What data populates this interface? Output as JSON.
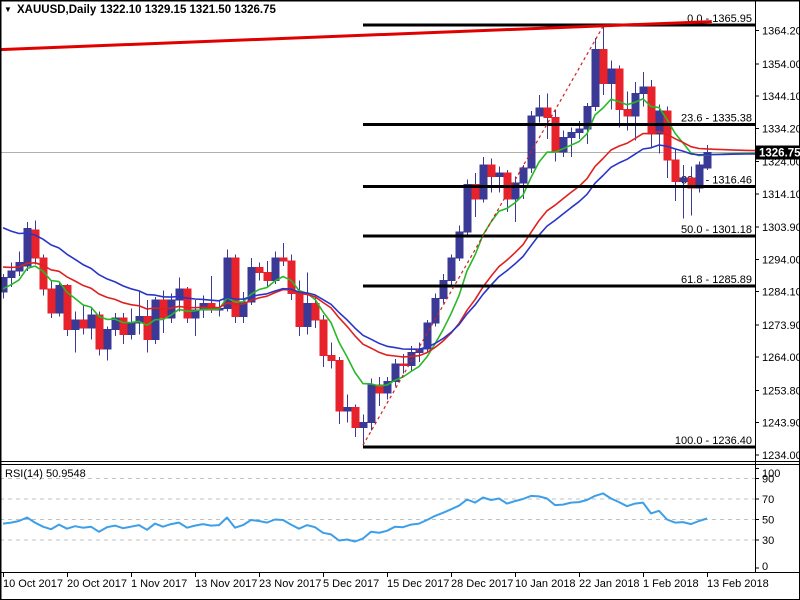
{
  "window": {
    "collapse_icon": "▼",
    "title": {
      "symbol": "XAUUSD,Daily",
      "values": "1322.10 1329.15 1321.50 1326.75"
    }
  },
  "price_axis": {
    "ticks": [
      "1364.20",
      "1354.00",
      "1344.10",
      "1334.20",
      "1324.00",
      "1314.10",
      "1303.90",
      "1294.00",
      "1284.10",
      "1273.90",
      "1264.00",
      "1253.80",
      "1243.90",
      "1234.00"
    ],
    "current_price_tag": "1326.75"
  },
  "date_axis": {
    "labels": [
      {
        "text": "10 Oct 2017",
        "index": 0
      },
      {
        "text": "20 Oct 2017",
        "index": 8
      },
      {
        "text": "1 Nov 2017",
        "index": 16
      },
      {
        "text": "13 Nov 2017",
        "index": 24
      },
      {
        "text": "23 Nov 2017",
        "index": 32
      },
      {
        "text": "5 Dec 2017",
        "index": 40
      },
      {
        "text": "15 Dec 2017",
        "index": 48
      },
      {
        "text": "28 Dec 2017",
        "index": 56
      },
      {
        "text": "10 Jan 2018",
        "index": 64
      },
      {
        "text": "22 Jan 2018",
        "index": 72
      },
      {
        "text": "1 Feb 2018",
        "index": 80
      },
      {
        "text": "13 Feb 2018",
        "index": 88
      }
    ]
  },
  "fibonacci": {
    "levels": [
      {
        "pct": "0.0",
        "price": 1365.95,
        "label": "0.0 - 1365.95"
      },
      {
        "pct": "23.6",
        "price": 1335.38,
        "label": "23.6 - 1335.38"
      },
      {
        "pct": "38.2",
        "price": 1316.46,
        "label": "38.2 - 1316.46"
      },
      {
        "pct": "50.0",
        "price": 1301.18,
        "label": "50.0 - 1301.18"
      },
      {
        "pct": "61.8",
        "price": 1285.89,
        "label": "61.8 - 1285.89"
      },
      {
        "pct": "100.0",
        "price": 1236.4,
        "label": "100.0 - 1236.40"
      }
    ]
  },
  "rsi_panel": {
    "label": "RSI(14) 50.9548",
    "scale_labels": [
      "100",
      "90",
      "70",
      "50",
      "30",
      "0"
    ],
    "gridlines": [
      90,
      70,
      50,
      30
    ]
  },
  "colors": {
    "background": "#FFFFFF",
    "bull": "#3A3A96",
    "bear": "#E8222A",
    "wick": "#3A3A96",
    "ma_fast": "#28B828",
    "ma_medium": "#E02020",
    "ma_slow": "#2A35C8",
    "rsi_line": "#3D9FE8",
    "fib": "#000000",
    "trendline": "#E00000",
    "trendline_dashed": "#D02020",
    "current_price_line": "#B0B0B0",
    "grid_dash": "#C0C0C0",
    "tag_bg": "#000000",
    "tag_text": "#FFFFFF",
    "frame": "#000000"
  },
  "chart_data": {
    "type": "candlestick",
    "symbol": "XAUUSD",
    "timeframe": "Daily",
    "title": "XAUUSD,Daily 1322.10 1329.15 1321.50 1326.75",
    "ohlc_display": {
      "open": 1322.1,
      "high": 1329.15,
      "low": 1321.5,
      "close": 1326.75
    },
    "current_price": 1326.75,
    "ylim": [
      1234.0,
      1364.2
    ],
    "columns": [
      "date",
      "open",
      "high",
      "low",
      "close"
    ],
    "candles": [
      [
        "10 Oct 2017",
        1284.0,
        1289.5,
        1282.0,
        1288.5
      ],
      [
        "11 Oct 2017",
        1288.5,
        1293.0,
        1285.5,
        1290.5
      ],
      [
        "12 Oct 2017",
        1290.5,
        1296.5,
        1289.0,
        1293.0
      ],
      [
        "13 Oct 2017",
        1292.0,
        1305.5,
        1290.5,
        1303.5
      ],
      [
        "16 Oct 2017",
        1303.0,
        1306.0,
        1292.5,
        1294.5
      ],
      [
        "17 Oct 2017",
        1294.5,
        1295.5,
        1283.0,
        1285.0
      ],
      [
        "18 Oct 2017",
        1285.0,
        1287.5,
        1276.0,
        1277.5
      ],
      [
        "19 Oct 2017",
        1277.5,
        1287.0,
        1276.5,
        1286.0
      ],
      [
        "20 Oct 2017",
        1286.0,
        1286.5,
        1270.5,
        1272.5
      ],
      [
        "23 Oct 2017",
        1272.5,
        1278.0,
        1265.5,
        1275.5
      ],
      [
        "24 Oct 2017",
        1275.5,
        1280.0,
        1271.0,
        1273.0
      ],
      [
        "25 Oct 2017",
        1273.0,
        1279.0,
        1269.5,
        1277.0
      ],
      [
        "26 Oct 2017",
        1277.0,
        1278.0,
        1264.5,
        1266.5
      ],
      [
        "27 Oct 2017",
        1266.5,
        1273.5,
        1263.0,
        1272.5
      ],
      [
        "30 Oct 2017",
        1272.5,
        1277.5,
        1270.5,
        1276.0
      ],
      [
        "31 Oct 2017",
        1276.0,
        1277.5,
        1268.0,
        1271.0
      ],
      [
        "1 Nov 2017",
        1271.0,
        1279.0,
        1269.5,
        1274.5
      ],
      [
        "2 Nov 2017",
        1274.5,
        1284.5,
        1271.0,
        1276.5
      ],
      [
        "3 Nov 2017",
        1276.5,
        1281.5,
        1265.5,
        1269.5
      ],
      [
        "6 Nov 2017",
        1269.5,
        1282.5,
        1268.0,
        1281.5
      ],
      [
        "7 Nov 2017",
        1281.5,
        1284.5,
        1271.5,
        1276.0
      ],
      [
        "8 Nov 2017",
        1276.0,
        1283.5,
        1274.5,
        1281.5
      ],
      [
        "9 Nov 2017",
        1281.5,
        1288.5,
        1278.0,
        1285.0
      ],
      [
        "10 Nov 2017",
        1285.0,
        1285.5,
        1274.5,
        1276.0
      ],
      [
        "13 Nov 2017",
        1276.0,
        1281.5,
        1270.5,
        1278.5
      ],
      [
        "14 Nov 2017",
        1278.5,
        1283.0,
        1276.0,
        1280.5
      ],
      [
        "15 Nov 2017",
        1280.5,
        1289.0,
        1277.5,
        1278.5
      ],
      [
        "16 Nov 2017",
        1278.5,
        1281.5,
        1276.5,
        1279.0
      ],
      [
        "17 Nov 2017",
        1279.0,
        1297.0,
        1278.0,
        1294.5
      ],
      [
        "20 Nov 2017",
        1294.5,
        1295.5,
        1274.5,
        1276.5
      ],
      [
        "21 Nov 2017",
        1276.5,
        1284.0,
        1274.5,
        1281.0
      ],
      [
        "22 Nov 2017",
        1281.0,
        1294.5,
        1280.0,
        1291.5
      ],
      [
        "23 Nov 2017",
        1291.5,
        1293.0,
        1287.5,
        1290.0
      ],
      [
        "24 Nov 2017",
        1290.0,
        1293.5,
        1285.5,
        1287.5
      ],
      [
        "27 Nov 2017",
        1287.5,
        1296.5,
        1286.5,
        1294.5
      ],
      [
        "28 Nov 2017",
        1294.5,
        1299.0,
        1292.0,
        1293.5
      ],
      [
        "29 Nov 2017",
        1293.5,
        1295.5,
        1281.5,
        1283.5
      ],
      [
        "30 Nov 2017",
        1283.5,
        1287.5,
        1270.5,
        1273.5
      ],
      [
        "1 Dec 2017",
        1273.5,
        1290.0,
        1271.0,
        1280.5
      ],
      [
        "4 Dec 2017",
        1280.5,
        1282.5,
        1273.0,
        1275.5
      ],
      [
        "5 Dec 2017",
        1275.5,
        1277.0,
        1261.0,
        1264.5
      ],
      [
        "6 Dec 2017",
        1264.5,
        1268.5,
        1260.5,
        1263.0
      ],
      [
        "7 Dec 2017",
        1263.0,
        1264.0,
        1243.5,
        1247.5
      ],
      [
        "8 Dec 2017",
        1247.5,
        1252.5,
        1244.0,
        1248.5
      ],
      [
        "11 Dec 2017",
        1248.5,
        1249.5,
        1239.5,
        1242.5
      ],
      [
        "12 Dec 2017",
        1242.5,
        1246.5,
        1236.4,
        1244.0
      ],
      [
        "13 Dec 2017",
        1244.0,
        1257.5,
        1241.5,
        1255.5
      ],
      [
        "14 Dec 2017",
        1255.5,
        1258.0,
        1249.0,
        1253.0
      ],
      [
        "15 Dec 2017",
        1253.0,
        1258.0,
        1251.0,
        1256.5
      ],
      [
        "18 Dec 2017",
        1256.5,
        1263.5,
        1255.0,
        1262.0
      ],
      [
        "19 Dec 2017",
        1262.0,
        1265.0,
        1259.0,
        1261.5
      ],
      [
        "20 Dec 2017",
        1261.5,
        1267.5,
        1260.0,
        1265.5
      ],
      [
        "21 Dec 2017",
        1265.5,
        1268.5,
        1262.5,
        1266.5
      ],
      [
        "22 Dec 2017",
        1266.5,
        1275.5,
        1265.5,
        1274.5
      ],
      [
        "26 Dec 2017",
        1274.5,
        1283.5,
        1273.5,
        1282.0
      ],
      [
        "27 Dec 2017",
        1282.0,
        1289.5,
        1280.5,
        1287.5
      ],
      [
        "28 Dec 2017",
        1287.5,
        1295.5,
        1286.0,
        1294.5
      ],
      [
        "29 Dec 2017",
        1294.5,
        1304.5,
        1293.5,
        1302.5
      ],
      [
        "2 Jan 2018",
        1302.5,
        1318.5,
        1301.5,
        1317.0
      ],
      [
        "3 Jan 2018",
        1317.0,
        1320.5,
        1307.0,
        1312.5
      ],
      [
        "4 Jan 2018",
        1312.5,
        1325.5,
        1311.5,
        1323.0
      ],
      [
        "5 Jan 2018",
        1323.0,
        1325.0,
        1314.5,
        1319.5
      ],
      [
        "8 Jan 2018",
        1319.5,
        1322.5,
        1314.5,
        1320.5
      ],
      [
        "9 Jan 2018",
        1320.5,
        1321.5,
        1308.5,
        1312.5
      ],
      [
        "10 Jan 2018",
        1312.5,
        1319.5,
        1305.5,
        1317.5
      ],
      [
        "11 Jan 2018",
        1317.5,
        1323.0,
        1312.5,
        1322.0
      ],
      [
        "12 Jan 2018",
        1322.0,
        1339.5,
        1320.5,
        1338.0
      ],
      [
        "15 Jan 2018",
        1338.0,
        1344.5,
        1336.0,
        1340.5
      ],
      [
        "16 Jan 2018",
        1340.5,
        1345.0,
        1331.0,
        1337.5
      ],
      [
        "17 Jan 2018",
        1337.5,
        1340.0,
        1324.0,
        1327.0
      ],
      [
        "18 Jan 2018",
        1327.0,
        1333.5,
        1325.5,
        1331.5
      ],
      [
        "19 Jan 2018",
        1331.5,
        1334.5,
        1325.5,
        1333.0
      ],
      [
        "22 Jan 2018",
        1333.0,
        1336.5,
        1331.0,
        1334.0
      ],
      [
        "23 Jan 2018",
        1334.0,
        1342.0,
        1329.5,
        1341.0
      ],
      [
        "24 Jan 2018",
        1341.0,
        1362.0,
        1339.5,
        1358.5
      ],
      [
        "25 Jan 2018",
        1358.5,
        1365.95,
        1344.5,
        1348.0
      ],
      [
        "26 Jan 2018",
        1348.0,
        1355.0,
        1340.0,
        1352.5
      ],
      [
        "29 Jan 2018",
        1352.5,
        1353.5,
        1334.5,
        1340.0
      ],
      [
        "30 Jan 2018",
        1340.0,
        1345.5,
        1333.5,
        1338.0
      ],
      [
        "31 Jan 2018",
        1338.0,
        1348.5,
        1330.5,
        1345.0
      ],
      [
        "1 Feb 2018",
        1345.0,
        1351.5,
        1341.0,
        1347.0
      ],
      [
        "2 Feb 2018",
        1347.0,
        1349.0,
        1328.0,
        1332.5
      ],
      [
        "5 Feb 2018",
        1332.5,
        1341.5,
        1326.5,
        1339.5
      ],
      [
        "6 Feb 2018",
        1339.5,
        1341.0,
        1319.0,
        1324.5
      ],
      [
        "7 Feb 2018",
        1324.5,
        1328.0,
        1312.0,
        1318.0
      ],
      [
        "8 Feb 2018",
        1318.0,
        1323.0,
        1306.5,
        1319.0
      ],
      [
        "9 Feb 2018",
        1319.0,
        1322.5,
        1307.5,
        1316.0
      ],
      [
        "12 Feb 2018",
        1316.0,
        1324.0,
        1314.5,
        1323.0
      ],
      [
        "13 Feb 2018",
        1322.1,
        1329.15,
        1321.5,
        1326.75
      ]
    ],
    "moving_averages": [
      {
        "name": "fast",
        "type": "ema",
        "period": 8,
        "seed": 1284,
        "color": "#28B828"
      },
      {
        "name": "medium",
        "type": "ema",
        "period": 20,
        "seed": 1292,
        "color": "#E02020"
      },
      {
        "name": "slow",
        "type": "ema",
        "period": 25,
        "seed": 1305,
        "color": "#2A35C8"
      }
    ],
    "trendlines": [
      {
        "name": "resistance-trendline",
        "style": "solid",
        "width": 3,
        "color": "#E00000",
        "from": {
          "index": -0.4,
          "price": 1358.4
        },
        "to": {
          "index": 88.6,
          "price": 1367.0
        }
      },
      {
        "name": "rally-trendline",
        "style": "dashed",
        "width": 1.2,
        "color": "#D02020",
        "from": {
          "index": 45,
          "price": 1237.0
        },
        "to": {
          "index": 75,
          "price": 1365.5
        }
      }
    ],
    "rsi": {
      "period": 14,
      "current": 50.9548,
      "values": [
        46,
        47,
        48.5,
        52,
        47,
        43,
        40.5,
        45,
        41,
        43.5,
        42,
        43,
        38,
        42.5,
        44,
        41.5,
        43,
        44.5,
        40,
        46,
        43,
        45.5,
        47,
        42,
        44,
        45.5,
        44,
        44.5,
        52,
        42,
        44.5,
        49.5,
        48.5,
        47,
        50,
        49.5,
        45,
        41,
        44.5,
        42.5,
        37,
        35.5,
        29.5,
        30.5,
        28.5,
        31.5,
        38,
        37,
        39,
        43,
        42.5,
        45,
        46,
        49.5,
        53.5,
        56.5,
        60,
        63.5,
        69.5,
        66.5,
        71.5,
        69,
        70.5,
        65.5,
        68,
        70,
        73,
        72.5,
        70.5,
        64,
        64.5,
        66.5,
        67,
        69,
        73,
        75.5,
        70.5,
        67,
        63,
        65.5,
        66.5,
        56,
        58.5,
        50,
        47,
        47.5,
        45.5,
        48.5,
        50.95
      ]
    }
  }
}
